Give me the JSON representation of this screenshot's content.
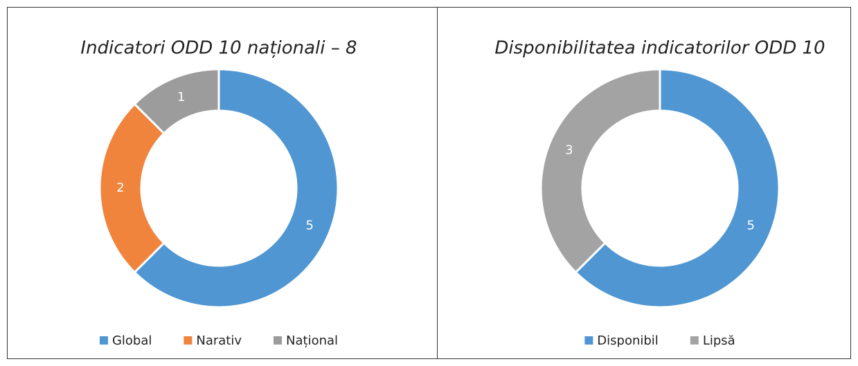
{
  "chart_data": [
    {
      "type": "donut",
      "title": "Indicatori ODD 10 naționali – 8",
      "categories": [
        "Global",
        "Narativ",
        "Național"
      ],
      "values": [
        5,
        2,
        1
      ],
      "colors": [
        "#4f96d3",
        "#f0843c",
        "#9c9c9c"
      ],
      "legend": "bottom"
    },
    {
      "type": "donut",
      "title": "Disponibilitatea indicatorilor ODD 10",
      "categories": [
        "Disponibil",
        "Lipsă"
      ],
      "values": [
        5,
        3
      ],
      "colors": [
        "#4f96d3",
        "#a3a3a3"
      ],
      "legend": "bottom"
    }
  ]
}
